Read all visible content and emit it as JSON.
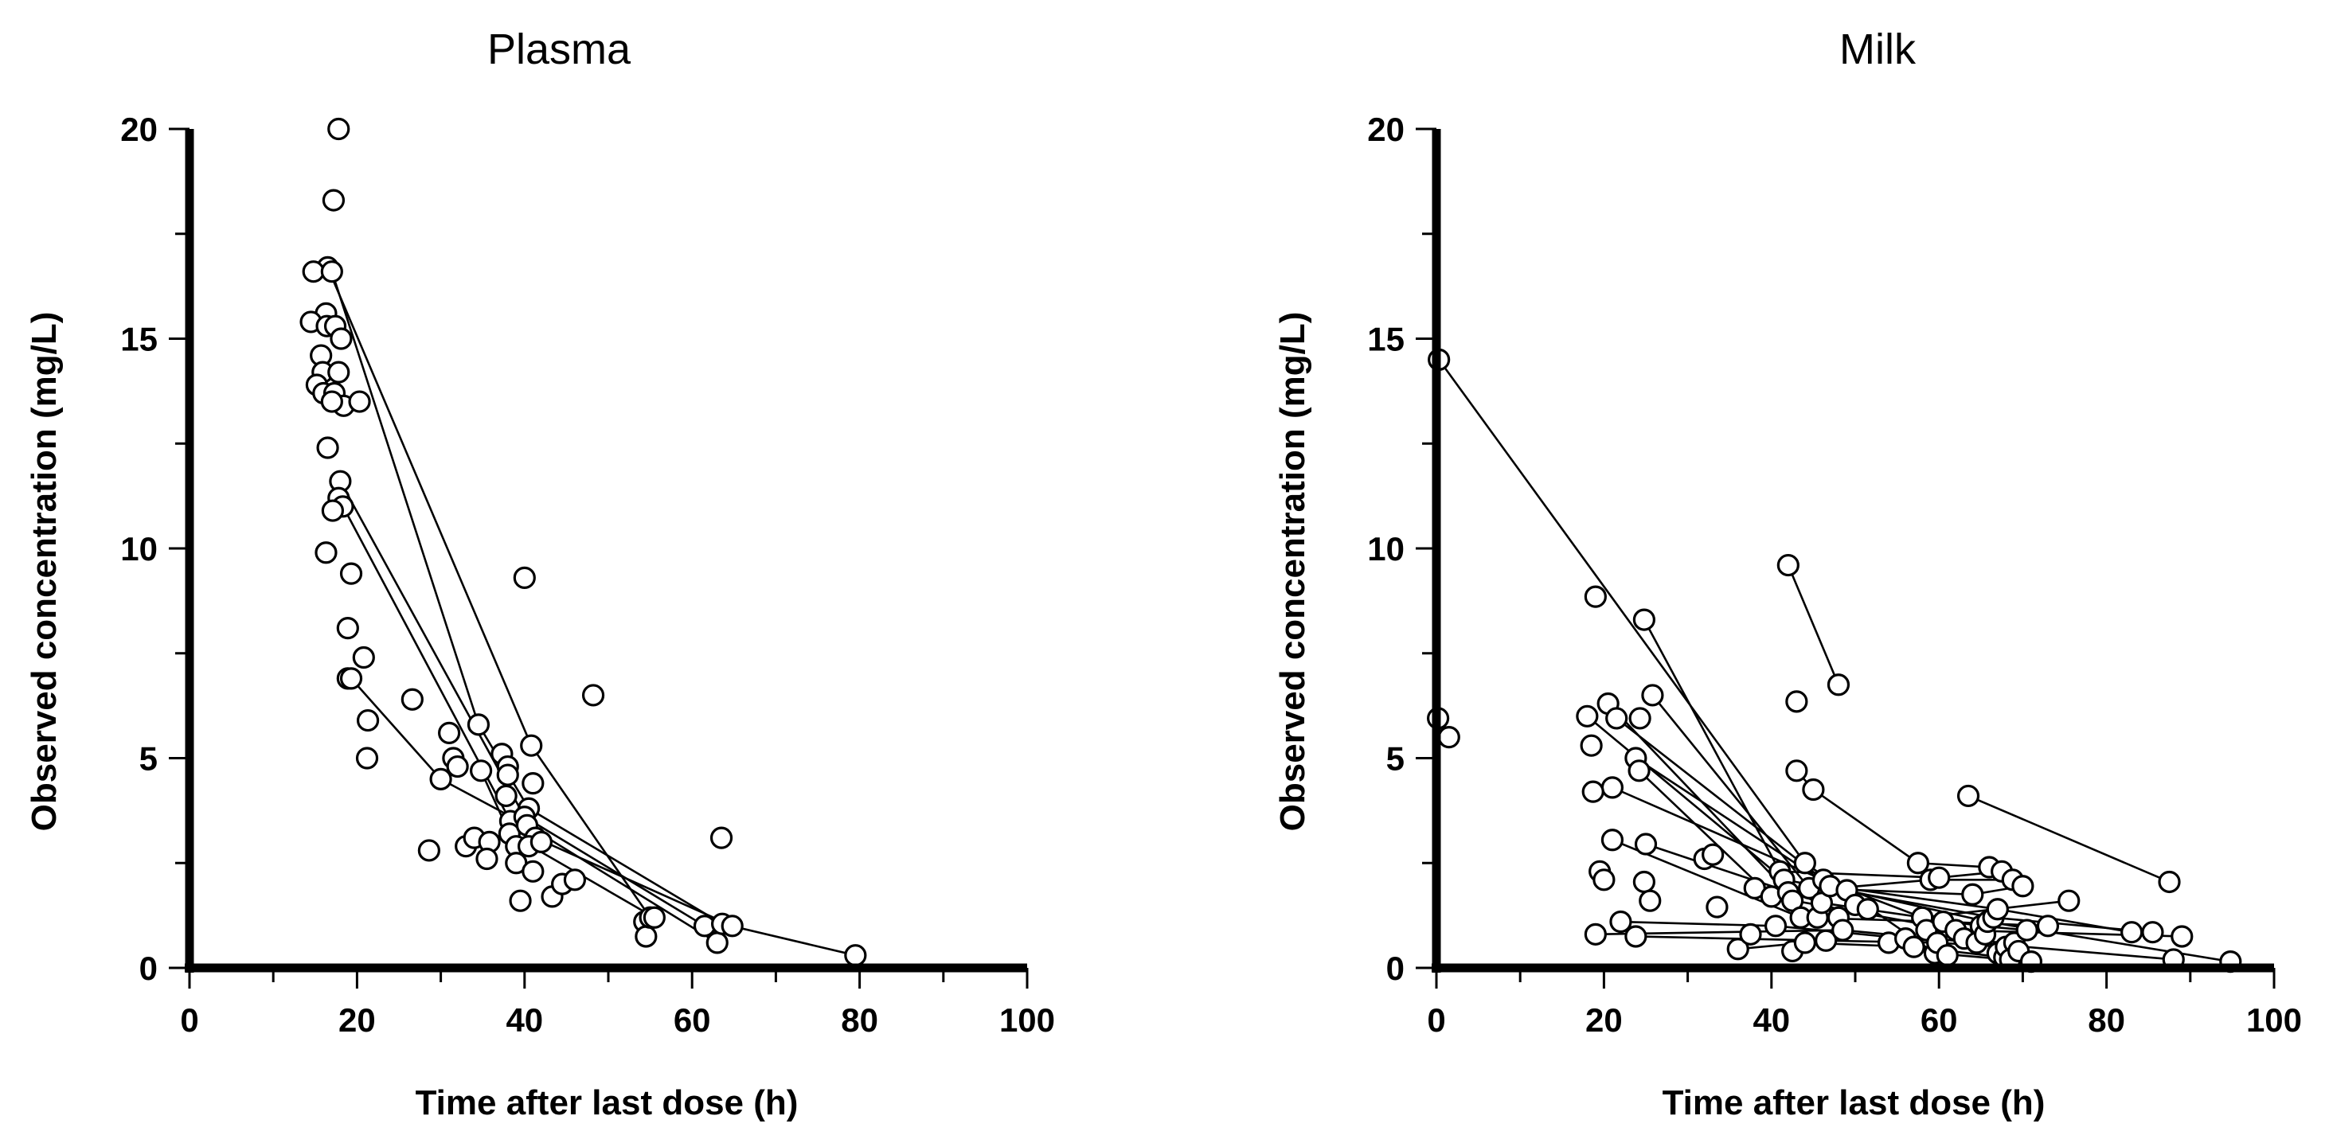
{
  "chart_data": [
    {
      "type": "scatter",
      "title": "Plasma",
      "xlabel": "Time after last dose (h)",
      "ylabel": "Observed concentration (mg/L)",
      "xlim": [
        0,
        100
      ],
      "ylim": [
        0,
        20
      ],
      "x_ticks": [
        0,
        20,
        40,
        60,
        80,
        100
      ],
      "y_ticks": [
        0,
        5,
        10,
        15,
        20
      ],
      "x_tick_labels": [
        "0",
        "20",
        "40",
        "60",
        "80",
        "100"
      ],
      "y_tick_labels": [
        "0",
        "5",
        "10",
        "15",
        "20"
      ],
      "minor_step_x": 10,
      "minor_step_y": 2.5,
      "points": [
        [
          17.8,
          20.0
        ],
        [
          17.2,
          18.3
        ],
        [
          16.5,
          16.7
        ],
        [
          14.8,
          16.6
        ],
        [
          17.0,
          16.6
        ],
        [
          16.3,
          15.6
        ],
        [
          14.5,
          15.4
        ],
        [
          16.4,
          15.3
        ],
        [
          17.4,
          15.3
        ],
        [
          18.1,
          15.0
        ],
        [
          15.7,
          14.6
        ],
        [
          15.9,
          14.2
        ],
        [
          17.8,
          14.2
        ],
        [
          15.2,
          13.9
        ],
        [
          16.0,
          13.7
        ],
        [
          17.3,
          13.7
        ],
        [
          18.4,
          13.4
        ],
        [
          20.3,
          13.5
        ],
        [
          17.0,
          13.5
        ],
        [
          16.5,
          12.4
        ],
        [
          18.0,
          11.6
        ],
        [
          17.8,
          11.2
        ],
        [
          18.3,
          11.0
        ],
        [
          17.1,
          10.9
        ],
        [
          16.3,
          9.9
        ],
        [
          19.3,
          9.4
        ],
        [
          18.9,
          8.1
        ],
        [
          20.8,
          7.4
        ],
        [
          18.9,
          6.9
        ],
        [
          19.3,
          6.9
        ],
        [
          21.3,
          5.9
        ],
        [
          21.2,
          5.0
        ],
        [
          26.6,
          6.4
        ],
        [
          28.6,
          2.8
        ],
        [
          31.0,
          5.6
        ],
        [
          31.5,
          5.0
        ],
        [
          32.0,
          4.8
        ],
        [
          30.0,
          4.5
        ],
        [
          34.5,
          5.8
        ],
        [
          34.8,
          4.7
        ],
        [
          33.0,
          2.9
        ],
        [
          34.0,
          3.1
        ],
        [
          35.8,
          3.0
        ],
        [
          35.5,
          2.6
        ],
        [
          37.3,
          5.1
        ],
        [
          38.0,
          4.8
        ],
        [
          38.0,
          4.6
        ],
        [
          37.8,
          4.1
        ],
        [
          38.3,
          3.5
        ],
        [
          38.2,
          3.2
        ],
        [
          39.0,
          2.9
        ],
        [
          39.0,
          2.5
        ],
        [
          39.5,
          1.6
        ],
        [
          40.0,
          9.3
        ],
        [
          40.8,
          5.3
        ],
        [
          41.0,
          4.4
        ],
        [
          40.5,
          3.8
        ],
        [
          40.0,
          3.6
        ],
        [
          40.3,
          3.4
        ],
        [
          41.3,
          3.1
        ],
        [
          40.5,
          2.9
        ],
        [
          41.0,
          2.3
        ],
        [
          42.0,
          3.0
        ],
        [
          43.3,
          1.7
        ],
        [
          44.5,
          2.0
        ],
        [
          46.0,
          2.1
        ],
        [
          48.2,
          6.5
        ],
        [
          54.3,
          1.1
        ],
        [
          54.5,
          0.75
        ],
        [
          55.0,
          1.2
        ],
        [
          55.5,
          1.2
        ],
        [
          61.5,
          1.0
        ],
        [
          63.0,
          0.6
        ],
        [
          63.5,
          3.1
        ],
        [
          63.6,
          1.05
        ],
        [
          64.8,
          1.0
        ],
        [
          79.5,
          0.3
        ]
      ],
      "connected_series": [
        [
          [
            16.5,
            16.7
          ],
          [
            40.8,
            5.3
          ],
          [
            55.0,
            1.2
          ]
        ],
        [
          [
            17.0,
            16.6
          ],
          [
            34.5,
            5.8
          ],
          [
            40.5,
            3.8
          ],
          [
            63.6,
            1.05
          ],
          [
            79.5,
            0.3
          ]
        ],
        [
          [
            18.0,
            11.6
          ],
          [
            40.0,
            3.6
          ],
          [
            61.5,
            1.0
          ]
        ],
        [
          [
            17.8,
            11.2
          ],
          [
            38.3,
            3.5
          ],
          [
            41.3,
            3.1
          ],
          [
            64.8,
            1.0
          ]
        ],
        [
          [
            19.3,
            6.9
          ],
          [
            30.0,
            4.5
          ],
          [
            40.3,
            3.4
          ],
          [
            63.0,
            0.6
          ]
        ],
        [
          [
            34.8,
            4.7
          ],
          [
            38.2,
            3.2
          ],
          [
            55.5,
            1.2
          ]
        ]
      ]
    },
    {
      "type": "scatter",
      "title": "Milk",
      "xlabel": "Time after last dose (h)",
      "ylabel": "Observed concentration (mg/L)",
      "xlim": [
        0,
        100
      ],
      "ylim": [
        0,
        20
      ],
      "x_ticks": [
        0,
        20,
        40,
        60,
        80,
        100
      ],
      "y_ticks": [
        0,
        5,
        10,
        15,
        20
      ],
      "x_tick_labels": [
        "0",
        "20",
        "40",
        "60",
        "80",
        "100"
      ],
      "y_tick_labels": [
        "0",
        "5",
        "10",
        "15",
        "20"
      ],
      "minor_step_x": 10,
      "minor_step_y": 2.5,
      "points": [
        [
          0.3,
          14.5
        ],
        [
          0.2,
          5.95
        ],
        [
          1.5,
          5.5
        ],
        [
          19.0,
          8.85
        ],
        [
          24.8,
          8.3
        ],
        [
          20.5,
          6.3
        ],
        [
          25.8,
          6.5
        ],
        [
          18.0,
          6.0
        ],
        [
          21.5,
          5.95
        ],
        [
          24.3,
          5.95
        ],
        [
          18.5,
          5.3
        ],
        [
          23.8,
          5.0
        ],
        [
          24.2,
          4.7
        ],
        [
          21.0,
          4.3
        ],
        [
          18.7,
          4.2
        ],
        [
          21.0,
          3.05
        ],
        [
          25.0,
          2.95
        ],
        [
          19.5,
          2.3
        ],
        [
          20.0,
          2.1
        ],
        [
          24.8,
          2.05
        ],
        [
          25.5,
          1.6
        ],
        [
          22.0,
          1.1
        ],
        [
          19.0,
          0.8
        ],
        [
          23.8,
          0.75
        ],
        [
          32.0,
          2.6
        ],
        [
          33.0,
          2.7
        ],
        [
          33.5,
          1.45
        ],
        [
          36.0,
          0.45
        ],
        [
          37.5,
          0.8
        ],
        [
          38.0,
          1.9
        ],
        [
          40.0,
          1.7
        ],
        [
          40.5,
          1.0
        ],
        [
          41.0,
          2.3
        ],
        [
          41.5,
          2.1
        ],
        [
          42.0,
          1.8
        ],
        [
          42.5,
          1.6
        ],
        [
          42.0,
          9.6
        ],
        [
          43.0,
          6.35
        ],
        [
          43.0,
          4.7
        ],
        [
          42.5,
          0.4
        ],
        [
          43.5,
          1.2
        ],
        [
          44.0,
          2.5
        ],
        [
          44.5,
          1.9
        ],
        [
          44.0,
          0.6
        ],
        [
          45.0,
          4.25
        ],
        [
          45.5,
          1.2
        ],
        [
          46.0,
          1.55
        ],
        [
          46.5,
          0.65
        ],
        [
          46.2,
          2.1
        ],
        [
          47.0,
          1.95
        ],
        [
          48.0,
          6.75
        ],
        [
          48.0,
          1.2
        ],
        [
          48.5,
          0.9
        ],
        [
          49.0,
          1.85
        ],
        [
          50.0,
          1.5
        ],
        [
          51.5,
          1.4
        ],
        [
          54.0,
          0.6
        ],
        [
          56.0,
          0.7
        ],
        [
          57.0,
          0.5
        ],
        [
          57.5,
          2.5
        ],
        [
          58.0,
          1.2
        ],
        [
          58.5,
          0.9
        ],
        [
          59.0,
          2.1
        ],
        [
          59.5,
          0.35
        ],
        [
          59.8,
          0.6
        ],
        [
          60.0,
          2.15
        ],
        [
          60.5,
          1.1
        ],
        [
          61.0,
          0.3
        ],
        [
          62.0,
          0.9
        ],
        [
          63.0,
          0.7
        ],
        [
          63.5,
          4.1
        ],
        [
          64.0,
          1.75
        ],
        [
          64.5,
          0.6
        ],
        [
          65.0,
          1.0
        ],
        [
          65.5,
          0.8
        ],
        [
          65.8,
          1.1
        ],
        [
          66.0,
          2.4
        ],
        [
          66.5,
          1.2
        ],
        [
          67.0,
          1.4
        ],
        [
          67.0,
          0.35
        ],
        [
          67.5,
          2.3
        ],
        [
          67.8,
          0.25
        ],
        [
          68.0,
          0.5
        ],
        [
          68.5,
          0.2
        ],
        [
          68.8,
          2.1
        ],
        [
          69.0,
          0.6
        ],
        [
          69.5,
          0.4
        ],
        [
          70.0,
          1.95
        ],
        [
          70.5,
          0.9
        ],
        [
          71.0,
          0.15
        ],
        [
          73.0,
          1.0
        ],
        [
          75.5,
          1.6
        ],
        [
          83.0,
          0.85
        ],
        [
          85.5,
          0.85
        ],
        [
          87.5,
          2.05
        ],
        [
          88.0,
          0.2
        ],
        [
          89.0,
          0.75
        ],
        [
          94.8,
          0.15
        ]
      ],
      "connected_series": [
        [
          [
            0.3,
            14.5
          ],
          [
            44.0,
            2.5
          ],
          [
            59.5,
            0.35
          ],
          [
            71.0,
            0.15
          ]
        ],
        [
          [
            42.0,
            9.6
          ],
          [
            48.0,
            6.75
          ]
        ],
        [
          [
            43.0,
            4.7
          ],
          [
            45.0,
            4.25
          ],
          [
            57.5,
            2.5
          ],
          [
            66.0,
            2.4
          ]
        ],
        [
          [
            63.5,
            4.1
          ],
          [
            87.5,
            2.05
          ]
        ],
        [
          [
            24.8,
            8.3
          ],
          [
            41.0,
            2.3
          ],
          [
            60.0,
            2.15
          ],
          [
            67.5,
            2.3
          ]
        ],
        [
          [
            25.8,
            6.5
          ],
          [
            44.5,
            1.9
          ],
          [
            64.0,
            1.75
          ],
          [
            70.0,
            1.95
          ]
        ],
        [
          [
            20.5,
            6.3
          ],
          [
            42.0,
            1.8
          ],
          [
            59.0,
            2.1
          ],
          [
            68.8,
            2.1
          ]
        ],
        [
          [
            21.5,
            5.95
          ],
          [
            46.2,
            2.1
          ],
          [
            58.0,
            1.2
          ],
          [
            75.5,
            1.6
          ]
        ],
        [
          [
            18.0,
            6.0
          ],
          [
            41.5,
            2.1
          ],
          [
            66.5,
            1.2
          ],
          [
            85.5,
            0.85
          ]
        ],
        [
          [
            23.8,
            5.0
          ],
          [
            47.0,
            1.95
          ],
          [
            67.0,
            1.4
          ],
          [
            83.0,
            0.85
          ]
        ],
        [
          [
            24.2,
            4.7
          ],
          [
            40.0,
            1.7
          ],
          [
            62.0,
            0.9
          ],
          [
            89.0,
            0.75
          ]
        ],
        [
          [
            21.0,
            4.3
          ],
          [
            49.0,
            1.85
          ],
          [
            65.8,
            1.1
          ],
          [
            94.8,
            0.15
          ]
        ],
        [
          [
            21.0,
            3.05
          ],
          [
            43.5,
            1.2
          ],
          [
            60.5,
            1.1
          ],
          [
            73.0,
            1.0
          ]
        ],
        [
          [
            25.0,
            2.95
          ],
          [
            46.0,
            1.55
          ],
          [
            65.0,
            1.0
          ],
          [
            70.5,
            0.9
          ]
        ],
        [
          [
            22.0,
            1.1
          ],
          [
            40.5,
            1.0
          ],
          [
            56.0,
            0.7
          ],
          [
            69.0,
            0.6
          ]
        ],
        [
          [
            19.0,
            0.8
          ],
          [
            48.5,
            0.9
          ],
          [
            64.5,
            0.6
          ],
          [
            88.0,
            0.2
          ]
        ],
        [
          [
            23.8,
            0.75
          ],
          [
            46.5,
            0.65
          ],
          [
            59.8,
            0.6
          ],
          [
            68.0,
            0.5
          ]
        ],
        [
          [
            36.0,
            0.45
          ],
          [
            44.0,
            0.6
          ],
          [
            57.0,
            0.5
          ],
          [
            67.8,
            0.25
          ]
        ]
      ]
    }
  ]
}
